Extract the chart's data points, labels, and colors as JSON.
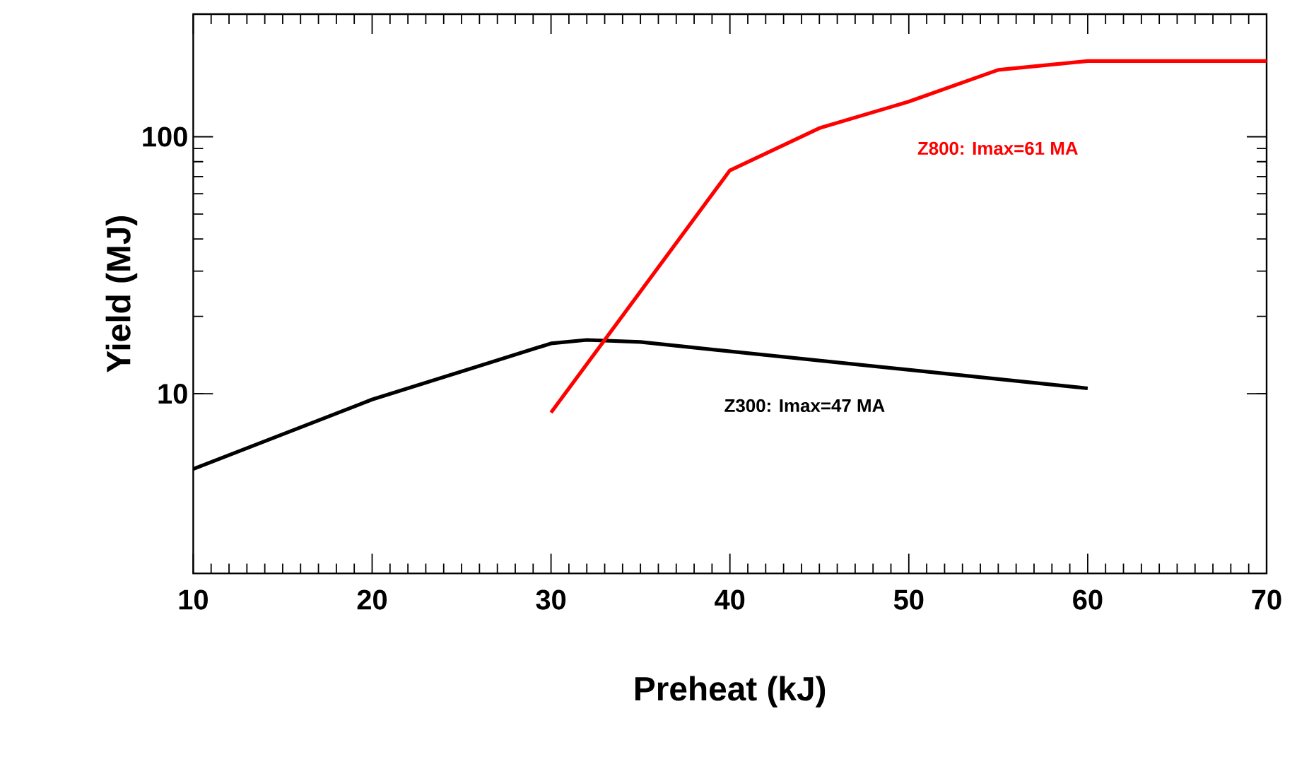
{
  "chart_data": {
    "type": "line",
    "xlabel": "Preheat (kJ)",
    "ylabel": "Yield (MJ)",
    "log": "y",
    "xlim": [
      10,
      70
    ],
    "xticks": [
      10,
      20,
      30,
      40,
      50,
      60,
      70
    ],
    "ylim": [
      2,
      300
    ],
    "yticks": [
      10,
      100
    ],
    "series": [
      {
        "name": "Z300: Imax=47 MA",
        "color": "#000000",
        "x": [
          10,
          20,
          30,
          32,
          35,
          60
        ],
        "values": [
          5.1,
          9.5,
          15.7,
          16.2,
          15.9,
          10.5
        ]
      },
      {
        "name": "Z800: Imax=61 MA",
        "color": "#ff0000",
        "x": [
          30,
          40,
          45,
          50,
          55,
          60,
          70
        ],
        "values": [
          8.45,
          74,
          108,
          137,
          182,
          197,
          197
        ]
      }
    ]
  }
}
